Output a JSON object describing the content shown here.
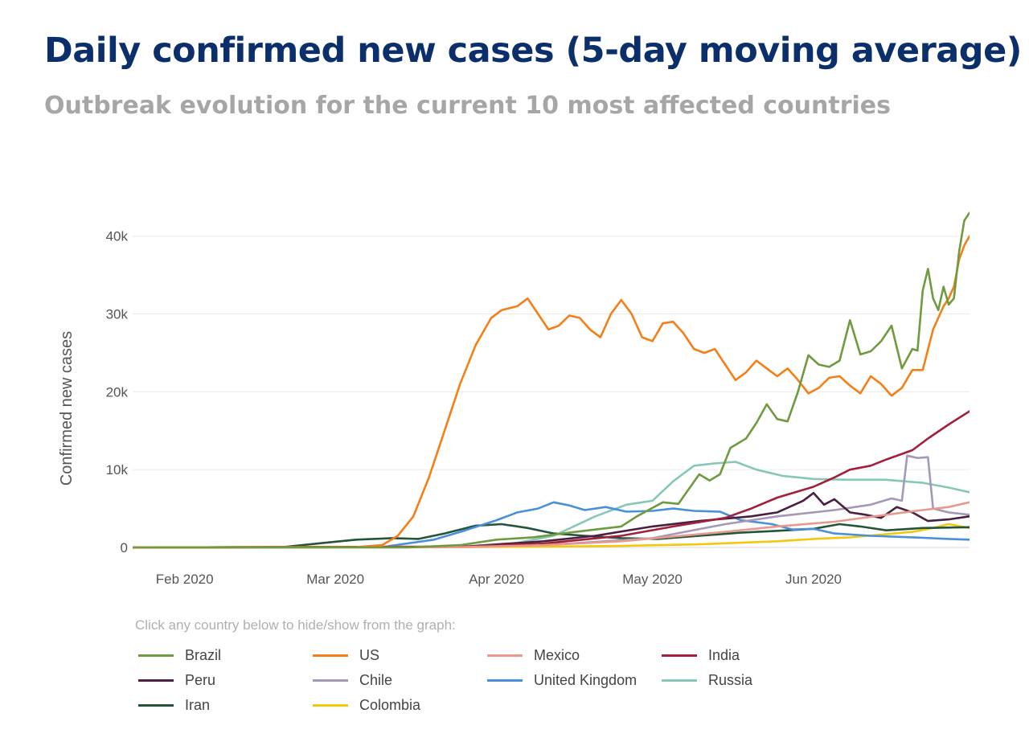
{
  "title": "Daily confirmed new cases (5-day moving average)",
  "subtitle": "Outbreak evolution for the current 10 most affected countries",
  "legend_hint": "Click any country below to hide/show from the graph:",
  "chart_data": {
    "type": "line",
    "ylabel": "Confirmed new cases",
    "xlabel": "",
    "y_ticks": [
      "0",
      "10k",
      "20k",
      "30k",
      "40k"
    ],
    "y_tick_values": [
      0,
      10000,
      20000,
      30000,
      40000
    ],
    "x_ticks": [
      "Feb 2020",
      "Mar 2020",
      "Apr 2020",
      "May 2020",
      "Jun 2020"
    ],
    "x_tick_dates": [
      "2020-02-01",
      "2020-03-01",
      "2020-04-01",
      "2020-05-01",
      "2020-06-01"
    ],
    "xlim": [
      "2020-01-22",
      "2020-06-28"
    ],
    "ylim": [
      0,
      44000
    ],
    "grid": "horizontal",
    "legend_position": "bottom",
    "series": [
      {
        "name": "Brazil",
        "color": "#6f9a3f",
        "points": [
          [
            "2020-01-22",
            0
          ],
          [
            "2020-03-15",
            10
          ],
          [
            "2020-03-25",
            300
          ],
          [
            "2020-04-01",
            1000
          ],
          [
            "2020-04-08",
            1300
          ],
          [
            "2020-04-15",
            1900
          ],
          [
            "2020-04-20",
            2300
          ],
          [
            "2020-04-25",
            2700
          ],
          [
            "2020-04-28",
            4000
          ],
          [
            "2020-05-03",
            5800
          ],
          [
            "2020-05-06",
            5600
          ],
          [
            "2020-05-08",
            7500
          ],
          [
            "2020-05-10",
            9400
          ],
          [
            "2020-05-12",
            8600
          ],
          [
            "2020-05-14",
            9400
          ],
          [
            "2020-05-16",
            12800
          ],
          [
            "2020-05-19",
            14000
          ],
          [
            "2020-05-21",
            16000
          ],
          [
            "2020-05-23",
            18400
          ],
          [
            "2020-05-25",
            16500
          ],
          [
            "2020-05-27",
            16200
          ],
          [
            "2020-05-29",
            20000
          ],
          [
            "2020-05-31",
            24700
          ],
          [
            "2020-06-02",
            23500
          ],
          [
            "2020-06-04",
            23200
          ],
          [
            "2020-06-06",
            24000
          ],
          [
            "2020-06-08",
            29200
          ],
          [
            "2020-06-10",
            24800
          ],
          [
            "2020-06-12",
            25200
          ],
          [
            "2020-06-14",
            26500
          ],
          [
            "2020-06-16",
            28500
          ],
          [
            "2020-06-18",
            23000
          ],
          [
            "2020-06-20",
            25500
          ],
          [
            "2020-06-21",
            25300
          ],
          [
            "2020-06-22",
            33000
          ],
          [
            "2020-06-23",
            35800
          ],
          [
            "2020-06-24",
            32000
          ],
          [
            "2020-06-25",
            30500
          ],
          [
            "2020-06-26",
            33500
          ],
          [
            "2020-06-27",
            31200
          ],
          [
            "2020-06-28",
            32000
          ],
          [
            "2020-06-29",
            38000
          ],
          [
            "2020-06-30",
            42000
          ],
          [
            "2020-07-01",
            43000
          ]
        ]
      },
      {
        "name": "US",
        "color": "#f57f17",
        "points": [
          [
            "2020-01-22",
            0
          ],
          [
            "2020-03-05",
            50
          ],
          [
            "2020-03-10",
            300
          ],
          [
            "2020-03-13",
            1500
          ],
          [
            "2020-03-16",
            4000
          ],
          [
            "2020-03-19",
            9000
          ],
          [
            "2020-03-22",
            15000
          ],
          [
            "2020-03-25",
            21000
          ],
          [
            "2020-03-28",
            26000
          ],
          [
            "2020-03-31",
            29500
          ],
          [
            "2020-04-02",
            30500
          ],
          [
            "2020-04-05",
            31000
          ],
          [
            "2020-04-07",
            32000
          ],
          [
            "2020-04-09",
            30000
          ],
          [
            "2020-04-11",
            28000
          ],
          [
            "2020-04-13",
            28500
          ],
          [
            "2020-04-15",
            29800
          ],
          [
            "2020-04-17",
            29500
          ],
          [
            "2020-04-19",
            28000
          ],
          [
            "2020-04-21",
            27000
          ],
          [
            "2020-04-23",
            30000
          ],
          [
            "2020-04-25",
            31800
          ],
          [
            "2020-04-27",
            30000
          ],
          [
            "2020-04-29",
            27000
          ],
          [
            "2020-05-01",
            26500
          ],
          [
            "2020-05-03",
            28800
          ],
          [
            "2020-05-05",
            29000
          ],
          [
            "2020-05-07",
            27500
          ],
          [
            "2020-05-09",
            25500
          ],
          [
            "2020-05-11",
            25000
          ],
          [
            "2020-05-13",
            25500
          ],
          [
            "2020-05-15",
            23500
          ],
          [
            "2020-05-17",
            21500
          ],
          [
            "2020-05-19",
            22500
          ],
          [
            "2020-05-21",
            24000
          ],
          [
            "2020-05-23",
            23000
          ],
          [
            "2020-05-25",
            22000
          ],
          [
            "2020-05-27",
            23000
          ],
          [
            "2020-05-29",
            21500
          ],
          [
            "2020-05-31",
            19800
          ],
          [
            "2020-06-02",
            20500
          ],
          [
            "2020-06-04",
            21800
          ],
          [
            "2020-06-06",
            22000
          ],
          [
            "2020-06-08",
            20800
          ],
          [
            "2020-06-10",
            19800
          ],
          [
            "2020-06-12",
            22000
          ],
          [
            "2020-06-14",
            21000
          ],
          [
            "2020-06-16",
            19500
          ],
          [
            "2020-06-18",
            20500
          ],
          [
            "2020-06-20",
            22800
          ],
          [
            "2020-06-22",
            22800
          ],
          [
            "2020-06-24",
            28000
          ],
          [
            "2020-06-26",
            31000
          ],
          [
            "2020-06-27",
            32000
          ],
          [
            "2020-06-28",
            33500
          ],
          [
            "2020-06-29",
            37000
          ],
          [
            "2020-06-30",
            38800
          ],
          [
            "2020-07-01",
            40000
          ]
        ]
      },
      {
        "name": "Mexico",
        "color": "#e8998d",
        "points": [
          [
            "2020-01-22",
            0
          ],
          [
            "2020-03-25",
            30
          ],
          [
            "2020-04-10",
            300
          ],
          [
            "2020-04-25",
            800
          ],
          [
            "2020-05-05",
            1400
          ],
          [
            "2020-05-15",
            2000
          ],
          [
            "2020-05-25",
            2700
          ],
          [
            "2020-06-05",
            3300
          ],
          [
            "2020-06-15",
            4200
          ],
          [
            "2020-06-22",
            4800
          ],
          [
            "2020-06-27",
            5200
          ],
          [
            "2020-07-01",
            5800
          ]
        ]
      },
      {
        "name": "India",
        "color": "#a3203a",
        "points": [
          [
            "2020-01-22",
            0
          ],
          [
            "2020-03-25",
            100
          ],
          [
            "2020-04-10",
            500
          ],
          [
            "2020-04-25",
            1500
          ],
          [
            "2020-05-05",
            2700
          ],
          [
            "2020-05-15",
            3800
          ],
          [
            "2020-05-20",
            5000
          ],
          [
            "2020-05-25",
            6400
          ],
          [
            "2020-06-01",
            7800
          ],
          [
            "2020-06-05",
            9000
          ],
          [
            "2020-06-08",
            10000
          ],
          [
            "2020-06-12",
            10500
          ],
          [
            "2020-06-15",
            11300
          ],
          [
            "2020-06-20",
            12500
          ],
          [
            "2020-06-23",
            14000
          ],
          [
            "2020-06-27",
            15800
          ],
          [
            "2020-07-01",
            17500
          ]
        ]
      },
      {
        "name": "Peru",
        "color": "#4a1f3f",
        "points": [
          [
            "2020-01-22",
            0
          ],
          [
            "2020-03-25",
            50
          ],
          [
            "2020-04-10",
            800
          ],
          [
            "2020-04-20",
            1500
          ],
          [
            "2020-05-01",
            2700
          ],
          [
            "2020-05-10",
            3400
          ],
          [
            "2020-05-20",
            4000
          ],
          [
            "2020-05-25",
            4500
          ],
          [
            "2020-05-30",
            6000
          ],
          [
            "2020-06-01",
            7000
          ],
          [
            "2020-06-03",
            5500
          ],
          [
            "2020-06-05",
            6200
          ],
          [
            "2020-06-08",
            4500
          ],
          [
            "2020-06-11",
            4200
          ],
          [
            "2020-06-14",
            3800
          ],
          [
            "2020-06-17",
            5200
          ],
          [
            "2020-06-20",
            4500
          ],
          [
            "2020-06-23",
            3400
          ],
          [
            "2020-06-27",
            3600
          ],
          [
            "2020-07-01",
            4000
          ]
        ]
      },
      {
        "name": "Chile",
        "color": "#a598b6",
        "points": [
          [
            "2020-01-22",
            0
          ],
          [
            "2020-03-25",
            100
          ],
          [
            "2020-04-15",
            500
          ],
          [
            "2020-05-01",
            1200
          ],
          [
            "2020-05-15",
            3000
          ],
          [
            "2020-05-25",
            4000
          ],
          [
            "2020-06-05",
            4800
          ],
          [
            "2020-06-12",
            5500
          ],
          [
            "2020-06-16",
            6300
          ],
          [
            "2020-06-18",
            6000
          ],
          [
            "2020-06-19",
            11800
          ],
          [
            "2020-06-21",
            11500
          ],
          [
            "2020-06-23",
            11600
          ],
          [
            "2020-06-24",
            5000
          ],
          [
            "2020-06-27",
            4500
          ],
          [
            "2020-07-01",
            4200
          ]
        ]
      },
      {
        "name": "United Kingdom",
        "color": "#4a90d9",
        "points": [
          [
            "2020-01-22",
            0
          ],
          [
            "2020-03-10",
            50
          ],
          [
            "2020-03-20",
            1000
          ],
          [
            "2020-03-26",
            2200
          ],
          [
            "2020-04-01",
            3500
          ],
          [
            "2020-04-05",
            4500
          ],
          [
            "2020-04-09",
            5000
          ],
          [
            "2020-04-12",
            5800
          ],
          [
            "2020-04-15",
            5400
          ],
          [
            "2020-04-18",
            4800
          ],
          [
            "2020-04-22",
            5200
          ],
          [
            "2020-04-26",
            4600
          ],
          [
            "2020-05-01",
            4700
          ],
          [
            "2020-05-05",
            5000
          ],
          [
            "2020-05-09",
            4700
          ],
          [
            "2020-05-14",
            4600
          ],
          [
            "2020-05-18",
            3500
          ],
          [
            "2020-05-24",
            3000
          ],
          [
            "2020-05-28",
            2300
          ],
          [
            "2020-06-01",
            2400
          ],
          [
            "2020-06-05",
            1800
          ],
          [
            "2020-06-12",
            1500
          ],
          [
            "2020-06-20",
            1300
          ],
          [
            "2020-06-27",
            1100
          ],
          [
            "2020-07-01",
            1000
          ]
        ]
      },
      {
        "name": "Russia",
        "color": "#86c7b8",
        "points": [
          [
            "2020-01-22",
            0
          ],
          [
            "2020-03-25",
            100
          ],
          [
            "2020-04-05",
            600
          ],
          [
            "2020-04-12",
            1500
          ],
          [
            "2020-04-20",
            4000
          ],
          [
            "2020-04-26",
            5500
          ],
          [
            "2020-05-01",
            6000
          ],
          [
            "2020-05-05",
            8500
          ],
          [
            "2020-05-09",
            10500
          ],
          [
            "2020-05-13",
            10800
          ],
          [
            "2020-05-17",
            11000
          ],
          [
            "2020-05-21",
            10000
          ],
          [
            "2020-05-26",
            9200
          ],
          [
            "2020-06-01",
            8800
          ],
          [
            "2020-06-08",
            8700
          ],
          [
            "2020-06-15",
            8700
          ],
          [
            "2020-06-22",
            8300
          ],
          [
            "2020-06-27",
            7700
          ],
          [
            "2020-07-01",
            7100
          ]
        ]
      },
      {
        "name": "Iran",
        "color": "#24553b",
        "points": [
          [
            "2020-01-22",
            0
          ],
          [
            "2020-02-20",
            50
          ],
          [
            "2020-02-28",
            600
          ],
          [
            "2020-03-05",
            1000
          ],
          [
            "2020-03-12",
            1200
          ],
          [
            "2020-03-17",
            1100
          ],
          [
            "2020-03-22",
            1800
          ],
          [
            "2020-03-28",
            2800
          ],
          [
            "2020-04-02",
            3000
          ],
          [
            "2020-04-07",
            2500
          ],
          [
            "2020-04-12",
            1800
          ],
          [
            "2020-04-18",
            1500
          ],
          [
            "2020-04-25",
            1200
          ],
          [
            "2020-05-02",
            1100
          ],
          [
            "2020-05-10",
            1500
          ],
          [
            "2020-05-18",
            1900
          ],
          [
            "2020-05-24",
            2100
          ],
          [
            "2020-06-01",
            2400
          ],
          [
            "2020-06-06",
            3000
          ],
          [
            "2020-06-10",
            2700
          ],
          [
            "2020-06-15",
            2200
          ],
          [
            "2020-06-22",
            2500
          ],
          [
            "2020-07-01",
            2600
          ]
        ]
      },
      {
        "name": "Colombia",
        "color": "#f2c80f",
        "points": [
          [
            "2020-01-22",
            0
          ],
          [
            "2020-03-20",
            20
          ],
          [
            "2020-04-10",
            100
          ],
          [
            "2020-04-25",
            200
          ],
          [
            "2020-05-10",
            400
          ],
          [
            "2020-05-25",
            800
          ],
          [
            "2020-06-01",
            1100
          ],
          [
            "2020-06-08",
            1300
          ],
          [
            "2020-06-15",
            1700
          ],
          [
            "2020-06-20",
            2000
          ],
          [
            "2020-06-24",
            2500
          ],
          [
            "2020-06-27",
            3000
          ],
          [
            "2020-07-01",
            2500
          ]
        ]
      }
    ]
  }
}
